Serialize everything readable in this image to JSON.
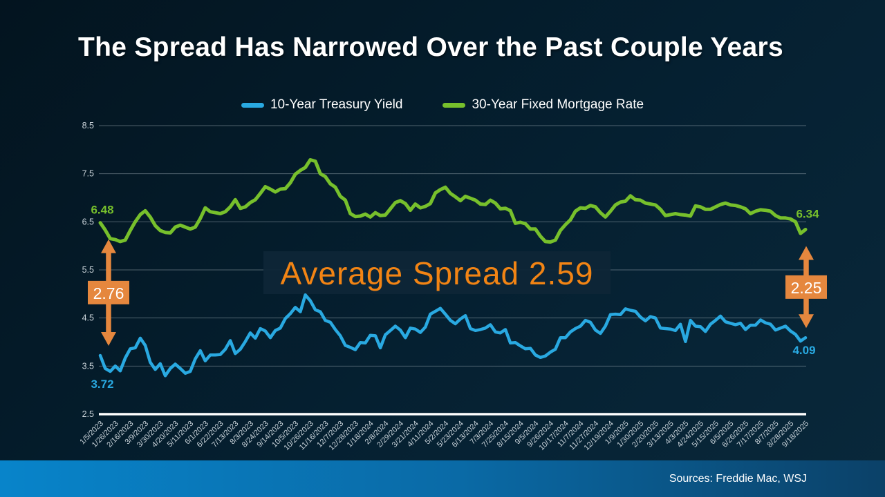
{
  "slide": {
    "title": "The Spread Has Narrowed Over the Past Couple Years",
    "source": "Sources: Freddie Mac, WSJ"
  },
  "legend": [
    {
      "label": "10-Year Treasury Yield",
      "color": "#29a9e1"
    },
    {
      "label": "30-Year Fixed Mortgage Rate",
      "color": "#77c02c"
    }
  ],
  "colors": {
    "treasury_blue": "#29a9e1",
    "mortgage_green": "#77c02c",
    "annotation_orange": "#e5873e",
    "avg_text_orange": "#f28414",
    "grid": "rgba(205,215,222,0.38)",
    "axis_white": "#ffffff",
    "callout_panel": "#0e2637"
  },
  "chart_data": {
    "type": "line",
    "title": "The Spread Has Narrowed Over the Past Couple Years",
    "xlabel": "",
    "ylabel": "",
    "ylim": [
      2.5,
      8.5
    ],
    "grid": true,
    "legend_position": "top-center",
    "y_ticks": [
      "8.5",
      "7.5",
      "6.5",
      "5.5",
      "4.5",
      "3.5",
      "2.5"
    ],
    "x_labels": [
      "1/5/2023",
      "1/26/2023",
      "2/16/2023",
      "3/9/2023",
      "3/30/2023",
      "4/20/2023",
      "5/11/2023",
      "6/1/2023",
      "6/22/2023",
      "7/13/2023",
      "8/3/2023",
      "8/24/2023",
      "9/14/2023",
      "10/5/2023",
      "10/26/2023",
      "11/16/2023",
      "12/7/2023",
      "12/28/2023",
      "1/18/2024",
      "2/8/2024",
      "2/29/2024",
      "3/21/2024",
      "4/11/2024",
      "5/2/2024",
      "5/23/2024",
      "6/13/2024",
      "7/3/2024",
      "7/25/2024",
      "8/15/2024",
      "9/5/2024",
      "9/26/2024",
      "10/17/2024",
      "11/7/2024",
      "11/27/2024",
      "12/19/2024",
      "1/9/2025",
      "1/30/2025",
      "2/20/2025",
      "3/13/2025",
      "4/3/2025",
      "4/24/2025",
      "5/15/2025",
      "6/5/2025",
      "6/26/2025",
      "7/17/2025",
      "8/7/2025",
      "8/28/2025",
      "9/18/2025"
    ],
    "x_label_every_nth_point": 3,
    "series": [
      {
        "name": "10-Year Treasury Yield",
        "color": "#29a9e1",
        "width": 4.5,
        "start_label": "3.72",
        "end_label": "4.09",
        "values": [
          3.72,
          3.45,
          3.39,
          3.5,
          3.4,
          3.67,
          3.86,
          3.88,
          4.08,
          3.93,
          3.58,
          3.43,
          3.55,
          3.3,
          3.45,
          3.54,
          3.45,
          3.35,
          3.39,
          3.65,
          3.82,
          3.61,
          3.73,
          3.73,
          3.74,
          3.85,
          4.03,
          3.76,
          3.85,
          4.01,
          4.19,
          4.08,
          4.28,
          4.23,
          4.09,
          4.24,
          4.29,
          4.49,
          4.59,
          4.72,
          4.63,
          4.98,
          4.86,
          4.67,
          4.63,
          4.45,
          4.41,
          4.26,
          4.13,
          3.93,
          3.89,
          3.84,
          3.99,
          3.98,
          4.14,
          4.13,
          3.88,
          4.15,
          4.24,
          4.33,
          4.25,
          4.09,
          4.29,
          4.27,
          4.2,
          4.31,
          4.58,
          4.64,
          4.7,
          4.58,
          4.45,
          4.38,
          4.48,
          4.55,
          4.28,
          4.24,
          4.26,
          4.29,
          4.36,
          4.21,
          4.19,
          4.26,
          3.98,
          3.99,
          3.92,
          3.86,
          3.87,
          3.73,
          3.68,
          3.71,
          3.79,
          3.85,
          4.09,
          4.09,
          4.21,
          4.28,
          4.33,
          4.45,
          4.41,
          4.25,
          4.18,
          4.33,
          4.57,
          4.58,
          4.57,
          4.69,
          4.66,
          4.64,
          4.52,
          4.44,
          4.53,
          4.5,
          4.29,
          4.28,
          4.27,
          4.24,
          4.37,
          4.01,
          4.45,
          4.33,
          4.32,
          4.22,
          4.37,
          4.45,
          4.54,
          4.42,
          4.39,
          4.36,
          4.39,
          4.26,
          4.35,
          4.35,
          4.46,
          4.4,
          4.37,
          4.25,
          4.29,
          4.33,
          4.23,
          4.16,
          4.02,
          4.09
        ]
      },
      {
        "name": "30-Year Fixed Mortgage Rate",
        "color": "#77c02c",
        "width": 5,
        "start_label": "6.48",
        "end_label": "6.34",
        "values": [
          6.48,
          6.33,
          6.15,
          6.13,
          6.09,
          6.12,
          6.32,
          6.5,
          6.65,
          6.73,
          6.6,
          6.42,
          6.32,
          6.28,
          6.27,
          6.39,
          6.43,
          6.39,
          6.35,
          6.39,
          6.57,
          6.79,
          6.71,
          6.69,
          6.67,
          6.71,
          6.81,
          6.96,
          6.78,
          6.81,
          6.9,
          6.96,
          7.09,
          7.23,
          7.18,
          7.12,
          7.18,
          7.19,
          7.31,
          7.49,
          7.57,
          7.63,
          7.79,
          7.76,
          7.5,
          7.44,
          7.29,
          7.22,
          7.03,
          6.95,
          6.67,
          6.61,
          6.62,
          6.66,
          6.6,
          6.69,
          6.63,
          6.64,
          6.77,
          6.9,
          6.94,
          6.88,
          6.74,
          6.87,
          6.79,
          6.82,
          6.88,
          7.1,
          7.17,
          7.22,
          7.09,
          7.02,
          6.94,
          7.03,
          6.99,
          6.95,
          6.87,
          6.86,
          6.95,
          6.89,
          6.77,
          6.78,
          6.73,
          6.47,
          6.49,
          6.46,
          6.35,
          6.35,
          6.2,
          6.09,
          6.08,
          6.12,
          6.32,
          6.44,
          6.54,
          6.72,
          6.79,
          6.78,
          6.84,
          6.81,
          6.69,
          6.6,
          6.72,
          6.85,
          6.91,
          6.93,
          7.04,
          6.96,
          6.95,
          6.89,
          6.87,
          6.85,
          6.76,
          6.63,
          6.65,
          6.67,
          6.65,
          6.64,
          6.62,
          6.83,
          6.81,
          6.76,
          6.76,
          6.81,
          6.86,
          6.89,
          6.85,
          6.84,
          6.81,
          6.77,
          6.67,
          6.72,
          6.75,
          6.74,
          6.72,
          6.63,
          6.58,
          6.58,
          6.56,
          6.5,
          6.26,
          6.34
        ]
      }
    ],
    "annotations": {
      "avg_spread_text": "Average Spread 2.59",
      "left_arrow": {
        "label": "2.76",
        "from": 3.72,
        "to": 6.48
      },
      "right_arrow": {
        "label": "2.25",
        "from": 4.09,
        "to": 6.34
      }
    }
  }
}
